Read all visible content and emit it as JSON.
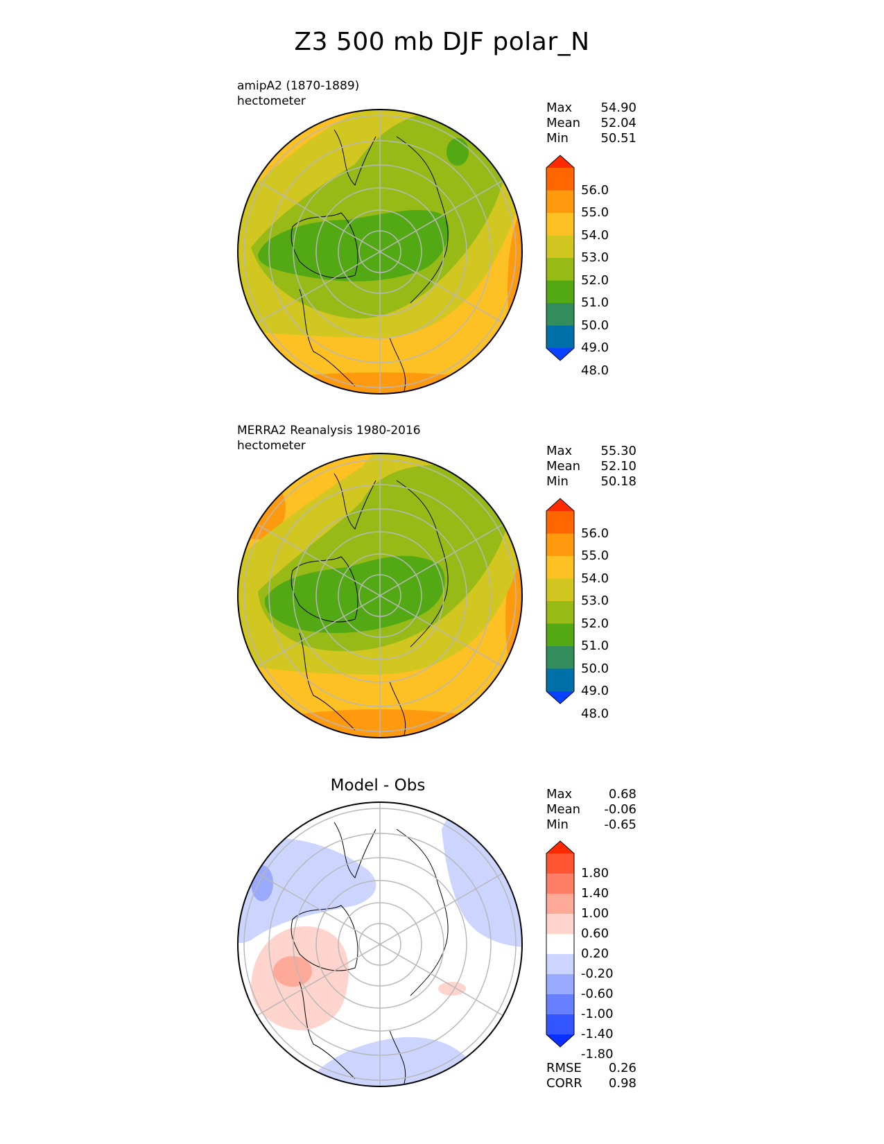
{
  "title": "Z3 500 mb DJF polar_N",
  "panels": [
    {
      "subtitle_line1": "amipA2 (1870-1889)",
      "subtitle_line2": "hectometer",
      "stats": [
        {
          "label": "Max",
          "value": "54.90"
        },
        {
          "label": "Mean",
          "value": "52.04"
        },
        {
          "label": "Min",
          "value": "50.51"
        }
      ]
    },
    {
      "subtitle_line1": "MERRA2 Reanalysis 1980-2016",
      "subtitle_line2": "hectometer",
      "stats": [
        {
          "label": "Max",
          "value": "55.30"
        },
        {
          "label": "Mean",
          "value": "52.10"
        },
        {
          "label": "Min",
          "value": "50.18"
        }
      ]
    },
    {
      "title": "Model - Obs",
      "stats": [
        {
          "label": "Max",
          "value": "0.68"
        },
        {
          "label": "Mean",
          "value": "-0.06"
        },
        {
          "label": "Min",
          "value": "-0.65"
        }
      ],
      "metrics": [
        {
          "label": "RMSE",
          "value": "0.26"
        },
        {
          "label": "CORR",
          "value": "0.98"
        }
      ]
    }
  ],
  "colorbar_main": {
    "ticks": [
      "56.0",
      "55.0",
      "54.0",
      "53.0",
      "52.0",
      "51.0",
      "50.0",
      "49.0",
      "48.0"
    ],
    "colors": [
      "#ff2a00",
      "#ff6600",
      "#ff9a0f",
      "#fdc124",
      "#d2c721",
      "#97ba16",
      "#52a913",
      "#338c5c",
      "#0070a8",
      "#0a40ff"
    ]
  },
  "colorbar_diff": {
    "ticks": [
      "1.80",
      "1.40",
      "1.00",
      "0.60",
      "0.20",
      "-0.20",
      "-0.60",
      "-1.00",
      "-1.40",
      "-1.80"
    ],
    "colors": [
      "#ff2a00",
      "#ff5533",
      "#ff7f66",
      "#ffa999",
      "#ffd4cc",
      "#ffffff",
      "#ccd5ff",
      "#99aaff",
      "#6680ff",
      "#3355ff",
      "#0a30ff"
    ]
  }
}
